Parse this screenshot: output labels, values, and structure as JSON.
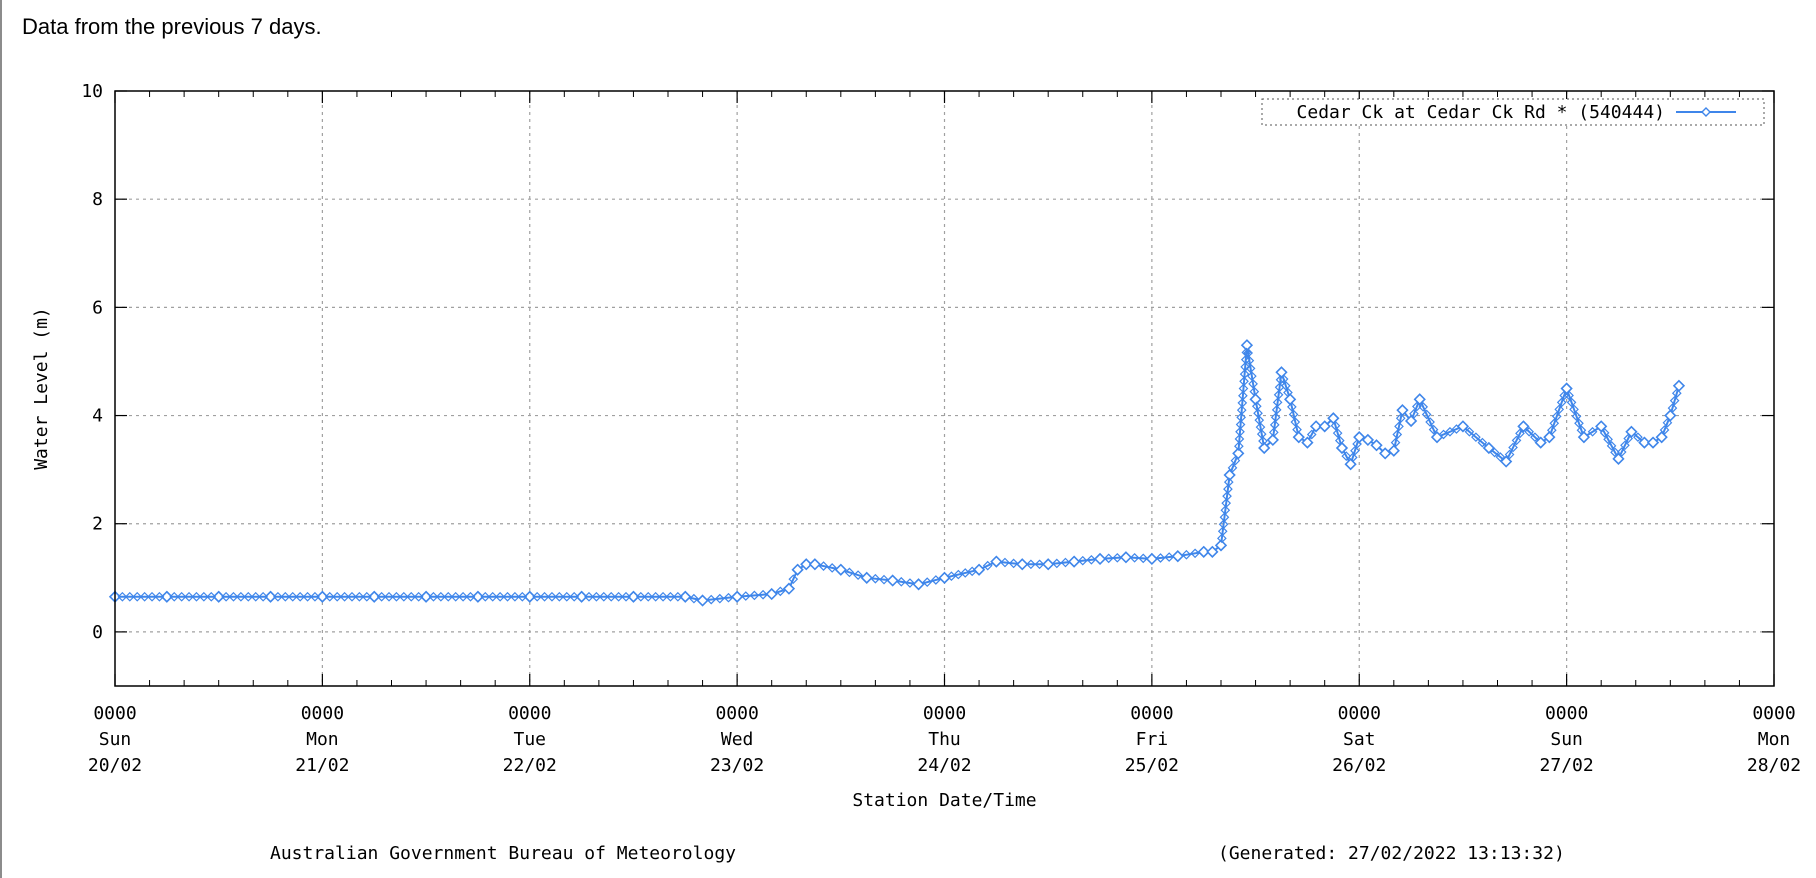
{
  "intro_text": "Data from the previous 7 days.",
  "footer": {
    "agency": "Australian Government Bureau of Meteorology",
    "generated": "(Generated: 27/02/2022 13:13:32)"
  },
  "colors": {
    "series": "#3f86ea",
    "grid": "#a0a0a0",
    "axis": "#000000"
  },
  "chart_data": {
    "type": "line",
    "title": "",
    "xlabel": "Station Date/Time",
    "ylabel": "Water Level (m)",
    "ylim": [
      -1,
      10
    ],
    "yticks": [
      0,
      2,
      4,
      6,
      8,
      10
    ],
    "xlim": [
      "2022-02-20 00:00",
      "2022-02-28 00:00"
    ],
    "grid": true,
    "legend_position": "top-right",
    "xticks": [
      {
        "time": "0000",
        "day": "Sun",
        "date": "20/02"
      },
      {
        "time": "0000",
        "day": "Mon",
        "date": "21/02"
      },
      {
        "time": "0000",
        "day": "Tue",
        "date": "22/02"
      },
      {
        "time": "0000",
        "day": "Wed",
        "date": "23/02"
      },
      {
        "time": "0000",
        "day": "Thu",
        "date": "24/02"
      },
      {
        "time": "0000",
        "day": "Fri",
        "date": "25/02"
      },
      {
        "time": "0000",
        "day": "Sat",
        "date": "26/02"
      },
      {
        "time": "0000",
        "day": "Sun",
        "date": "27/02"
      },
      {
        "time": "0000",
        "day": "Mon",
        "date": "28/02"
      }
    ],
    "series": [
      {
        "name": "Cedar Ck at Cedar Ck Rd * (540444)",
        "x": [
          "2022-02-20 00:00",
          "2022-02-20 06:00",
          "2022-02-20 12:00",
          "2022-02-20 18:00",
          "2022-02-21 00:00",
          "2022-02-21 06:00",
          "2022-02-21 12:00",
          "2022-02-21 18:00",
          "2022-02-22 00:00",
          "2022-02-22 06:00",
          "2022-02-22 12:00",
          "2022-02-22 18:00",
          "2022-02-22 20:00",
          "2022-02-23 00:00",
          "2022-02-23 04:00",
          "2022-02-23 06:00",
          "2022-02-23 07:00",
          "2022-02-23 08:00",
          "2022-02-23 09:00",
          "2022-02-23 12:00",
          "2022-02-23 15:00",
          "2022-02-23 18:00",
          "2022-02-23 21:00",
          "2022-02-24 00:00",
          "2022-02-24 04:00",
          "2022-02-24 06:00",
          "2022-02-24 09:00",
          "2022-02-24 12:00",
          "2022-02-24 15:00",
          "2022-02-24 18:00",
          "2022-02-24 21:00",
          "2022-02-25 00:00",
          "2022-02-25 03:00",
          "2022-02-25 06:00",
          "2022-02-25 07:00",
          "2022-02-25 08:00",
          "2022-02-25 09:00",
          "2022-02-25 10:00",
          "2022-02-25 11:00",
          "2022-02-25 12:00",
          "2022-02-25 13:00",
          "2022-02-25 14:00",
          "2022-02-25 15:00",
          "2022-02-25 16:00",
          "2022-02-25 17:00",
          "2022-02-25 18:00",
          "2022-02-25 19:00",
          "2022-02-25 20:00",
          "2022-02-25 21:00",
          "2022-02-25 22:00",
          "2022-02-25 23:00",
          "2022-02-26 00:00",
          "2022-02-26 01:00",
          "2022-02-26 02:00",
          "2022-02-26 03:00",
          "2022-02-26 04:00",
          "2022-02-26 05:00",
          "2022-02-26 06:00",
          "2022-02-26 07:00",
          "2022-02-26 09:00",
          "2022-02-26 12:00",
          "2022-02-26 15:00",
          "2022-02-26 17:00",
          "2022-02-26 19:00",
          "2022-02-26 21:00",
          "2022-02-26 22:00",
          "2022-02-27 00:00",
          "2022-02-27 02:00",
          "2022-02-27 04:00",
          "2022-02-27 06:00",
          "2022-02-27 07:30",
          "2022-02-27 09:00",
          "2022-02-27 10:00",
          "2022-02-27 11:00",
          "2022-02-27 12:00",
          "2022-02-27 13:00"
        ],
        "y": [
          0.65,
          0.65,
          0.65,
          0.65,
          0.65,
          0.65,
          0.65,
          0.65,
          0.65,
          0.65,
          0.65,
          0.65,
          0.58,
          0.65,
          0.7,
          0.8,
          1.15,
          1.25,
          1.25,
          1.15,
          1.0,
          0.95,
          0.88,
          1.0,
          1.15,
          1.3,
          1.25,
          1.25,
          1.3,
          1.35,
          1.38,
          1.35,
          1.4,
          1.48,
          1.48,
          1.6,
          2.9,
          3.3,
          5.3,
          4.3,
          3.4,
          3.55,
          4.8,
          4.3,
          3.6,
          3.5,
          3.8,
          3.8,
          3.95,
          3.4,
          3.1,
          3.6,
          3.55,
          3.45,
          3.3,
          3.35,
          4.1,
          3.9,
          4.3,
          3.6,
          3.8,
          3.4,
          3.15,
          3.8,
          3.5,
          3.6,
          4.5,
          3.6,
          3.8,
          3.2,
          3.7,
          3.5,
          3.5,
          3.6,
          4.0,
          4.55
        ]
      }
    ]
  }
}
